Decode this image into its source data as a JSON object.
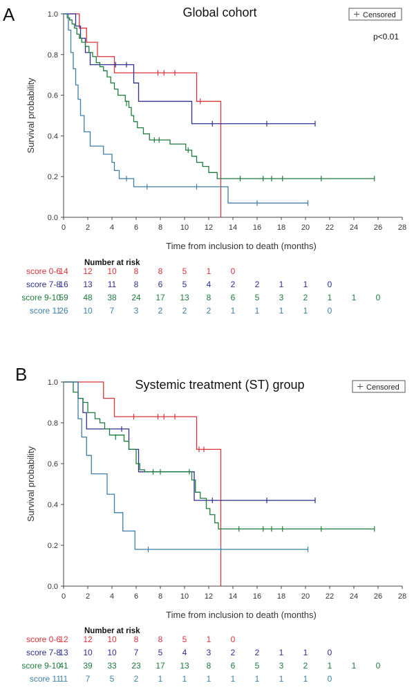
{
  "panels": [
    {
      "letter": "A",
      "title": "Global cohort",
      "legend_label": "Censored",
      "pvalue": "p<0.01",
      "ylabel": "Survival probability",
      "xlabel": "Time from inclusion to death (months)",
      "risk_header": "Number at risk",
      "risk_times": [
        0,
        2,
        4,
        6,
        8,
        10,
        12,
        14,
        16,
        18,
        20,
        22,
        24,
        26
      ],
      "risk_rows": [
        {
          "label": "score 0-6",
          "color": "#d8333b",
          "values": [
            "14",
            "12",
            "10",
            "8",
            "8",
            "5",
            "1",
            "0"
          ]
        },
        {
          "label": "score 7-8",
          "color": "#2b2f8c",
          "values": [
            "16",
            "13",
            "11",
            "8",
            "6",
            "5",
            "4",
            "2",
            "2",
            "1",
            "1",
            "0"
          ]
        },
        {
          "label": "score 9-10",
          "color": "#1c7b3a",
          "values": [
            "59",
            "48",
            "38",
            "24",
            "17",
            "13",
            "8",
            "6",
            "5",
            "3",
            "2",
            "1",
            "1",
            "0"
          ]
        },
        {
          "label": "score 11",
          "color": "#3d7ea6",
          "values": [
            "26",
            "10",
            "7",
            "3",
            "2",
            "2",
            "2",
            "1",
            "1",
            "1",
            "1",
            "0"
          ]
        }
      ]
    },
    {
      "letter": "B",
      "title": "Systemic treatment (ST) group",
      "legend_label": "Censored",
      "pvalue": "",
      "ylabel": "Survival probability",
      "xlabel": "Time from inclusion to death (months)",
      "risk_header": "Number at risk",
      "risk_times": [
        0,
        2,
        4,
        6,
        8,
        10,
        12,
        14,
        16,
        18,
        20,
        22,
        24,
        26
      ],
      "risk_rows": [
        {
          "label": "score 0-6",
          "color": "#d8333b",
          "values": [
            "12",
            "12",
            "10",
            "8",
            "8",
            "5",
            "1",
            "0"
          ]
        },
        {
          "label": "score 7-8",
          "color": "#2b2f8c",
          "values": [
            "13",
            "10",
            "10",
            "7",
            "5",
            "4",
            "3",
            "2",
            "2",
            "1",
            "1",
            "0"
          ]
        },
        {
          "label": "score 9-10",
          "color": "#1c7b3a",
          "values": [
            "41",
            "39",
            "33",
            "23",
            "17",
            "13",
            "8",
            "6",
            "5",
            "3",
            "2",
            "1",
            "1",
            "0"
          ]
        },
        {
          "label": "score 11",
          "color": "#3d7ea6",
          "values": [
            "11",
            "7",
            "5",
            "2",
            "1",
            "1",
            "1",
            "1",
            "1",
            "1",
            "1",
            "0"
          ]
        }
      ]
    }
  ],
  "chart_data": [
    {
      "type": "line",
      "title": "Global cohort",
      "xlabel": "Time from inclusion to death (months)",
      "ylabel": "Survival probability",
      "xlim": [
        0,
        28
      ],
      "ylim": [
        0,
        1
      ],
      "xticks": [
        0,
        2,
        4,
        6,
        8,
        10,
        12,
        14,
        16,
        18,
        20,
        22,
        24,
        26,
        28
      ],
      "yticks": [
        0.0,
        0.2,
        0.4,
        0.6,
        0.8,
        1.0
      ],
      "grid": false,
      "legend": "top-right",
      "series": [
        {
          "name": "score 0-6",
          "color": "#d8333b",
          "steps": [
            [
              0,
              1.0
            ],
            [
              1.3,
              0.93
            ],
            [
              1.9,
              0.86
            ],
            [
              2.8,
              0.79
            ],
            [
              4.2,
              0.71
            ],
            [
              11.0,
              0.57
            ],
            [
              13.0,
              0.0
            ]
          ],
          "end": 13.0,
          "censored": [
            [
              7.8,
              0.71
            ],
            [
              8.3,
              0.71
            ],
            [
              9.2,
              0.71
            ],
            [
              11.3,
              0.57
            ]
          ]
        },
        {
          "name": "score 7-8",
          "color": "#2b2f8c",
          "steps": [
            [
              0,
              1.0
            ],
            [
              1.0,
              0.94
            ],
            [
              1.4,
              0.88
            ],
            [
              1.8,
              0.81
            ],
            [
              2.2,
              0.75
            ],
            [
              5.8,
              0.66
            ],
            [
              6.2,
              0.57
            ],
            [
              10.6,
              0.46
            ]
          ],
          "end": 20.8,
          "censored": [
            [
              4.3,
              0.75
            ],
            [
              5.2,
              0.75
            ],
            [
              12.3,
              0.46
            ],
            [
              16.8,
              0.46
            ],
            [
              20.8,
              0.46
            ]
          ]
        },
        {
          "name": "score 9-10",
          "color": "#1c7b3a",
          "steps": [
            [
              0,
              1.0
            ],
            [
              0.3,
              0.98
            ],
            [
              0.5,
              0.97
            ],
            [
              0.7,
              0.95
            ],
            [
              0.9,
              0.93
            ],
            [
              1.1,
              0.9
            ],
            [
              1.3,
              0.88
            ],
            [
              1.5,
              0.86
            ],
            [
              1.8,
              0.84
            ],
            [
              2.1,
              0.81
            ],
            [
              2.4,
              0.79
            ],
            [
              2.7,
              0.76
            ],
            [
              3.0,
              0.74
            ],
            [
              3.3,
              0.72
            ],
            [
              3.6,
              0.69
            ],
            [
              3.9,
              0.66
            ],
            [
              4.2,
              0.63
            ],
            [
              4.5,
              0.6
            ],
            [
              5.1,
              0.57
            ],
            [
              5.4,
              0.54
            ],
            [
              5.6,
              0.5
            ],
            [
              5.8,
              0.47
            ],
            [
              6.1,
              0.44
            ],
            [
              6.6,
              0.41
            ],
            [
              7.1,
              0.38
            ],
            [
              8.3,
              0.38
            ],
            [
              8.8,
              0.36
            ],
            [
              10.1,
              0.33
            ],
            [
              10.6,
              0.3
            ],
            [
              11.0,
              0.27
            ],
            [
              11.5,
              0.25
            ],
            [
              12.0,
              0.22
            ],
            [
              12.7,
              0.19
            ]
          ],
          "end": 25.7,
          "censored": [
            [
              5.2,
              0.56
            ],
            [
              7.5,
              0.38
            ],
            [
              7.9,
              0.38
            ],
            [
              10.3,
              0.33
            ],
            [
              14.6,
              0.19
            ],
            [
              16.5,
              0.19
            ],
            [
              17.2,
              0.19
            ],
            [
              18.1,
              0.19
            ],
            [
              21.3,
              0.19
            ],
            [
              25.7,
              0.19
            ]
          ]
        },
        {
          "name": "score 11",
          "color": "#3d7ea6",
          "steps": [
            [
              0,
              1.0
            ],
            [
              0.4,
              0.92
            ],
            [
              0.6,
              0.81
            ],
            [
              0.8,
              0.73
            ],
            [
              1.0,
              0.65
            ],
            [
              1.2,
              0.58
            ],
            [
              1.4,
              0.5
            ],
            [
              1.7,
              0.42
            ],
            [
              2.2,
              0.35
            ],
            [
              3.3,
              0.31
            ],
            [
              4.0,
              0.27
            ],
            [
              4.2,
              0.23
            ],
            [
              4.6,
              0.19
            ],
            [
              5.8,
              0.15
            ],
            [
              13.6,
              0.07
            ]
          ],
          "end": 20.2,
          "censored": [
            [
              5.2,
              0.19
            ],
            [
              6.9,
              0.15
            ],
            [
              11.0,
              0.15
            ],
            [
              16.0,
              0.07
            ],
            [
              20.2,
              0.07
            ]
          ]
        }
      ]
    },
    {
      "type": "line",
      "title": "Systemic treatment (ST) group",
      "xlabel": "Time from inclusion to death (months)",
      "ylabel": "Survival probability",
      "xlim": [
        0,
        28
      ],
      "ylim": [
        0,
        1
      ],
      "xticks": [
        0,
        2,
        4,
        6,
        8,
        10,
        12,
        14,
        16,
        18,
        20,
        22,
        24,
        26,
        28
      ],
      "yticks": [
        0.0,
        0.2,
        0.4,
        0.6,
        0.8,
        1.0
      ],
      "grid": false,
      "legend": "top-right",
      "series": [
        {
          "name": "score 0-6",
          "color": "#d8333b",
          "steps": [
            [
              0,
              1.0
            ],
            [
              3.3,
              0.92
            ],
            [
              4.2,
              0.83
            ],
            [
              11.0,
              0.67
            ],
            [
              13.0,
              0.0
            ]
          ],
          "end": 13.0,
          "censored": [
            [
              5.8,
              0.83
            ],
            [
              7.8,
              0.83
            ],
            [
              8.3,
              0.83
            ],
            [
              9.2,
              0.83
            ],
            [
              11.2,
              0.67
            ],
            [
              11.6,
              0.67
            ]
          ]
        },
        {
          "name": "score 7-8",
          "color": "#2b2f8c",
          "steps": [
            [
              0,
              1.0
            ],
            [
              1.2,
              0.92
            ],
            [
              1.6,
              0.85
            ],
            [
              1.9,
              0.77
            ],
            [
              5.4,
              0.67
            ],
            [
              6.2,
              0.56
            ],
            [
              10.8,
              0.42
            ]
          ],
          "end": 20.8,
          "censored": [
            [
              4.8,
              0.77
            ],
            [
              12.3,
              0.42
            ],
            [
              16.8,
              0.42
            ],
            [
              20.8,
              0.42
            ]
          ]
        },
        {
          "name": "score 9-10",
          "color": "#1c7b3a",
          "steps": [
            [
              0,
              1.0
            ],
            [
              0.8,
              0.95
            ],
            [
              1.2,
              0.92
            ],
            [
              1.6,
              0.9
            ],
            [
              2.0,
              0.85
            ],
            [
              2.6,
              0.82
            ],
            [
              3.0,
              0.8
            ],
            [
              3.4,
              0.77
            ],
            [
              3.8,
              0.74
            ],
            [
              5.0,
              0.71
            ],
            [
              5.4,
              0.67
            ],
            [
              6.0,
              0.6
            ],
            [
              6.3,
              0.57
            ],
            [
              6.7,
              0.56
            ],
            [
              10.6,
              0.52
            ],
            [
              10.9,
              0.46
            ],
            [
              11.3,
              0.43
            ],
            [
              11.8,
              0.38
            ],
            [
              12.1,
              0.35
            ],
            [
              12.5,
              0.31
            ],
            [
              12.8,
              0.28
            ]
          ],
          "end": 25.7,
          "censored": [
            [
              4.3,
              0.73
            ],
            [
              7.4,
              0.56
            ],
            [
              8.0,
              0.56
            ],
            [
              10.4,
              0.56
            ],
            [
              14.5,
              0.28
            ],
            [
              16.5,
              0.28
            ],
            [
              17.2,
              0.28
            ],
            [
              18.1,
              0.28
            ],
            [
              21.3,
              0.28
            ],
            [
              25.7,
              0.28
            ]
          ]
        },
        {
          "name": "score 11",
          "color": "#3d7ea6",
          "steps": [
            [
              0,
              1.0
            ],
            [
              1.2,
              0.82
            ],
            [
              1.5,
              0.73
            ],
            [
              1.9,
              0.64
            ],
            [
              2.3,
              0.55
            ],
            [
              3.6,
              0.45
            ],
            [
              4.2,
              0.36
            ],
            [
              4.9,
              0.27
            ],
            [
              5.9,
              0.18
            ]
          ],
          "end": 20.2,
          "censored": [
            [
              7.0,
              0.18
            ],
            [
              13.0,
              0.18
            ],
            [
              20.2,
              0.18
            ]
          ]
        }
      ]
    }
  ]
}
